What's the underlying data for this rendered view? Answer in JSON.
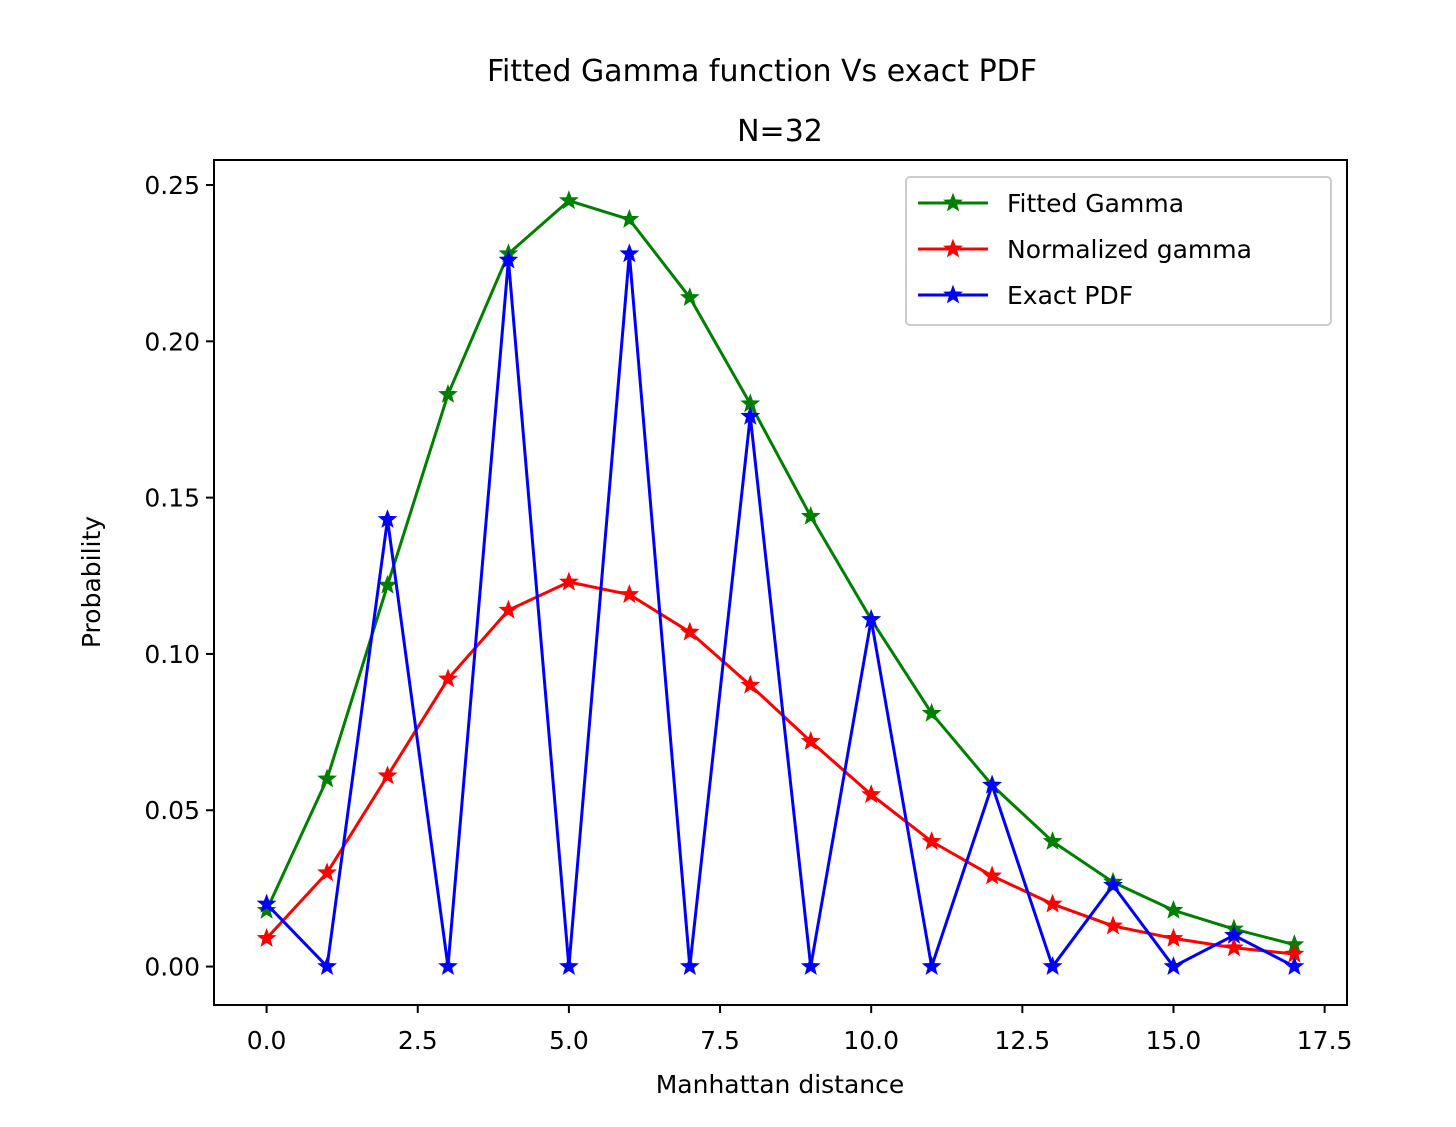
{
  "chart_data": {
    "type": "line",
    "title": "Fitted Gamma function Vs exact PDF",
    "subtitle": "N=32",
    "xlabel": "Manhattan distance",
    "ylabel": "Probability",
    "xlim": [
      -0.87,
      17.87
    ],
    "ylim": [
      -0.0123,
      0.258
    ],
    "xticks": [
      "0.0",
      "2.5",
      "5.0",
      "7.5",
      "10.0",
      "12.5",
      "15.0",
      "17.5"
    ],
    "yticks": [
      "0.00",
      "0.05",
      "0.10",
      "0.15",
      "0.20",
      "0.25"
    ],
    "grid": false,
    "legend_position": "top-right",
    "marker": "star",
    "x": [
      0,
      1,
      2,
      3,
      4,
      5,
      6,
      7,
      8,
      9,
      10,
      11,
      12,
      13,
      14,
      15,
      16,
      17
    ],
    "series": [
      {
        "name": "Fitted Gamma",
        "color": "#008000",
        "values": [
          0.018,
          0.06,
          0.122,
          0.183,
          0.228,
          0.245,
          0.239,
          0.214,
          0.18,
          0.144,
          0.111,
          0.081,
          0.058,
          0.04,
          0.027,
          0.018,
          0.012,
          0.007
        ]
      },
      {
        "name": "Normalized gamma",
        "color": "#ff0000",
        "values": [
          0.009,
          0.03,
          0.061,
          0.092,
          0.114,
          0.123,
          0.119,
          0.107,
          0.09,
          0.072,
          0.055,
          0.04,
          0.029,
          0.02,
          0.013,
          0.009,
          0.006,
          0.004
        ]
      },
      {
        "name": "Exact PDF",
        "color": "#0000ff",
        "values": [
          0.02,
          0.0,
          0.143,
          0.0,
          0.226,
          0.0,
          0.228,
          0.0,
          0.176,
          0.0,
          0.111,
          0.0,
          0.058,
          0.0,
          0.026,
          0.0,
          0.01,
          0.0
        ]
      }
    ]
  }
}
